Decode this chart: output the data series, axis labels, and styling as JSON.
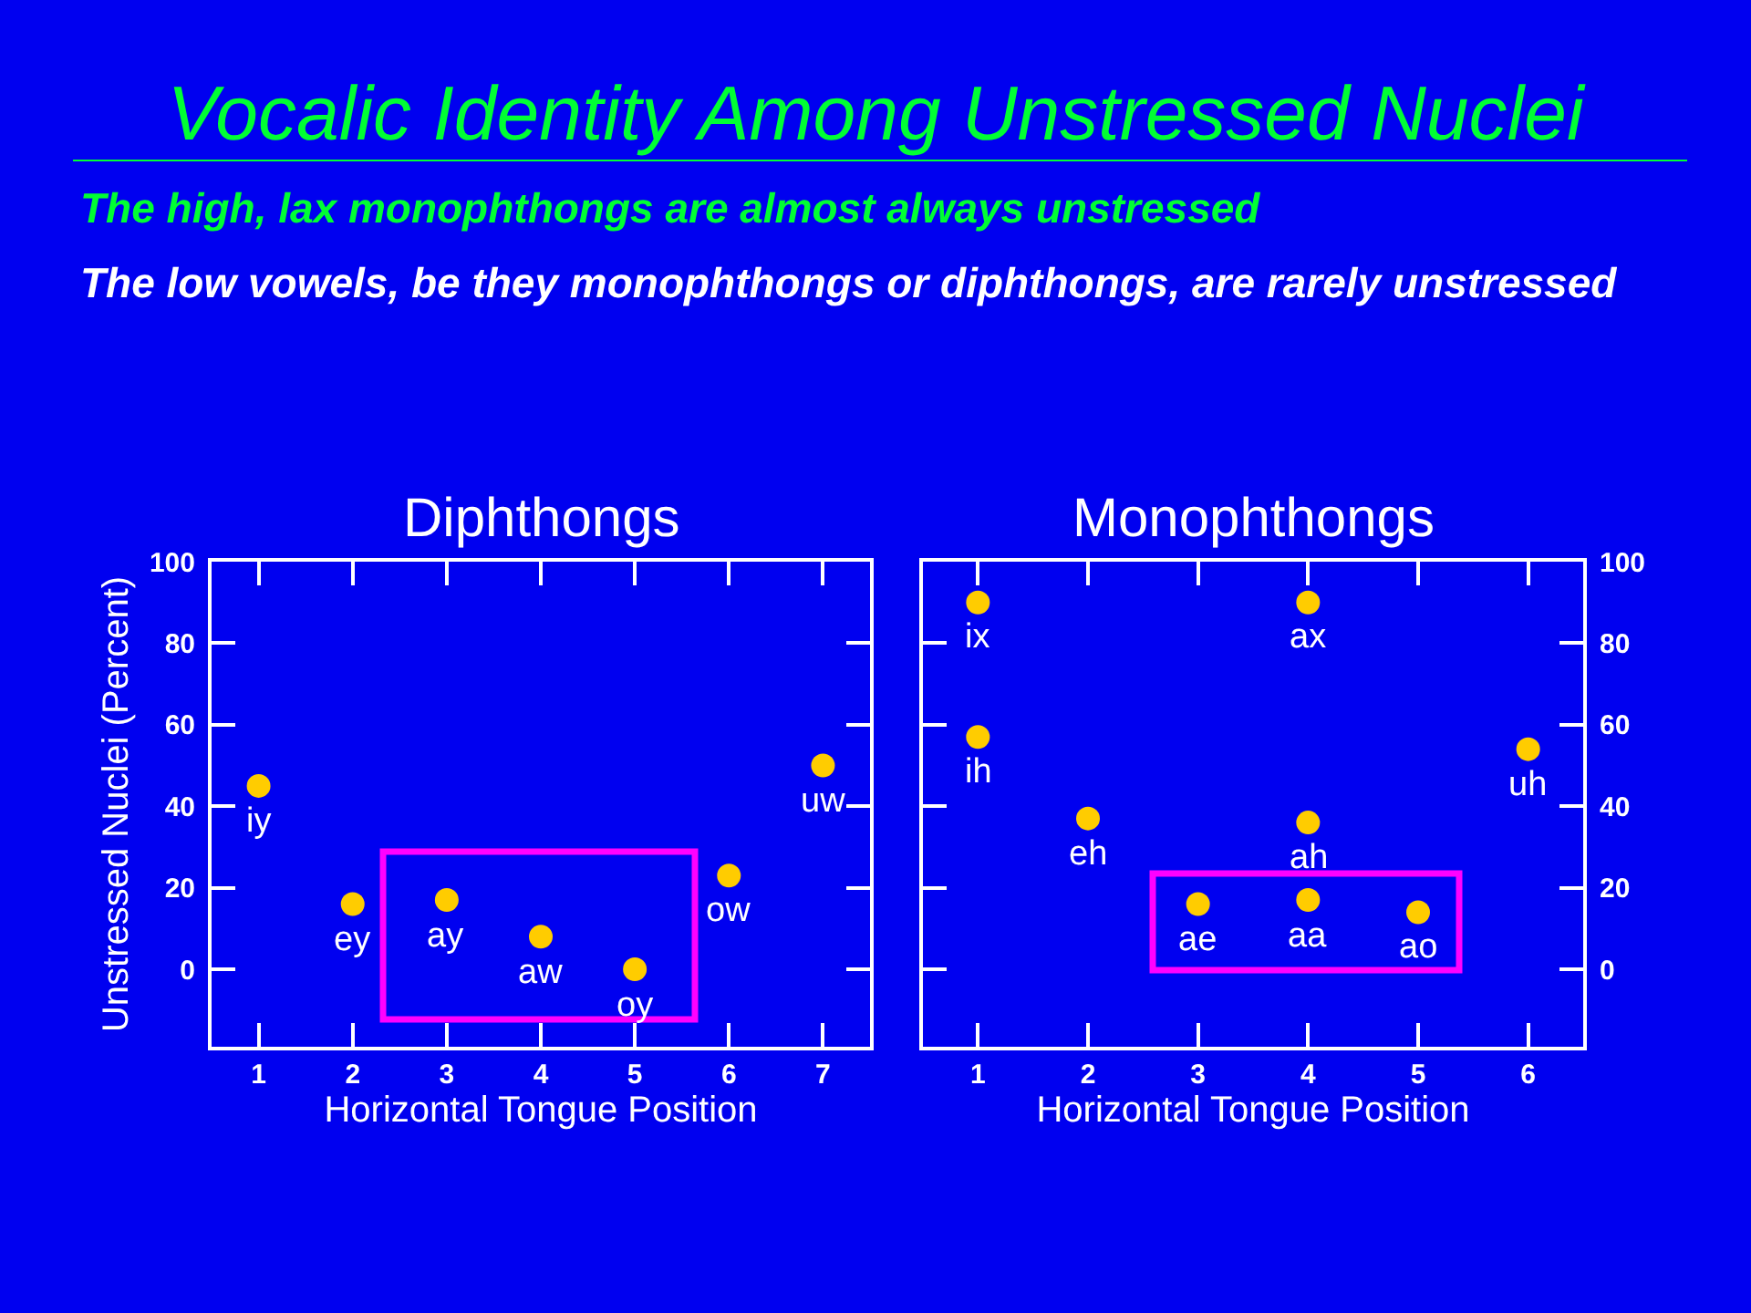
{
  "chart_data": [
    {
      "type": "other",
      "title": "Vocalic Identity Among Unstressed Nuclei",
      "subtitle": "The high, lax monophthongs are almost always unstressed",
      "annotations": [
        "The low vowels, be they monophthongs or diphthongs, are rarely unstressed"
      ]
    },
    {
      "type": "scatter",
      "title": "Diphthongs",
      "xlabel": "Horizontal Tongue Position",
      "ylabel": "Unstressed Nuclei (Percent)",
      "x": [
        1,
        2,
        3,
        4,
        5,
        6,
        7
      ],
      "marker": "circle",
      "series": [
        {
          "color": "#ffcc00",
          "values": [
            45,
            16,
            17,
            8,
            0,
            23,
            50
          ]
        }
      ],
      "xlim": [
        0.5,
        7.5
      ],
      "xticks": [
        1,
        2,
        3,
        4,
        5,
        6,
        7
      ],
      "ylim": [
        -19,
        100
      ],
      "yticks": [
        0,
        20,
        40,
        60,
        80,
        100
      ],
      "annotations": [
        {
          "text": "iy",
          "x": 1,
          "y": 45
        },
        {
          "text": "ey",
          "x": 2,
          "y": 16
        },
        {
          "text": "ay",
          "x": 3,
          "y": 17
        },
        {
          "text": "aw",
          "x": 4,
          "y": 8
        },
        {
          "text": "oy",
          "x": 5,
          "y": 0
        },
        {
          "text": "ow",
          "x": 6,
          "y": 23
        },
        {
          "text": "uw",
          "x": 7,
          "y": 50
        }
      ]
    },
    {
      "type": "scatter",
      "title": "Monophthongs",
      "xlabel": "Horizontal Tongue Position",
      "x": [
        1,
        1,
        2,
        3,
        4,
        4,
        4,
        5,
        6
      ],
      "marker": "circle",
      "series": [
        {
          "color": "#ffcc00",
          "values": [
            90,
            57,
            37,
            16,
            90,
            36,
            17,
            14,
            54
          ]
        }
      ],
      "xlim": [
        0.5,
        6.5
      ],
      "xticks": [
        1,
        2,
        3,
        4,
        5,
        6
      ],
      "ylim": [
        -19,
        100
      ],
      "yticks": [
        0,
        20,
        40,
        60,
        80,
        100
      ],
      "annotations": [
        {
          "text": "ix",
          "x": 1,
          "y": 90
        },
        {
          "text": "ih",
          "x": 1,
          "y": 57
        },
        {
          "text": "eh",
          "x": 2,
          "y": 37
        },
        {
          "text": "ae",
          "x": 3,
          "y": 16
        },
        {
          "text": "ax",
          "x": 4,
          "y": 90
        },
        {
          "text": "ah",
          "x": 4,
          "y": 36
        },
        {
          "text": "aa",
          "x": 4,
          "y": 17
        },
        {
          "text": "ao",
          "x": 5,
          "y": 14
        },
        {
          "text": "uh",
          "x": 6,
          "y": 54
        }
      ]
    }
  ]
}
